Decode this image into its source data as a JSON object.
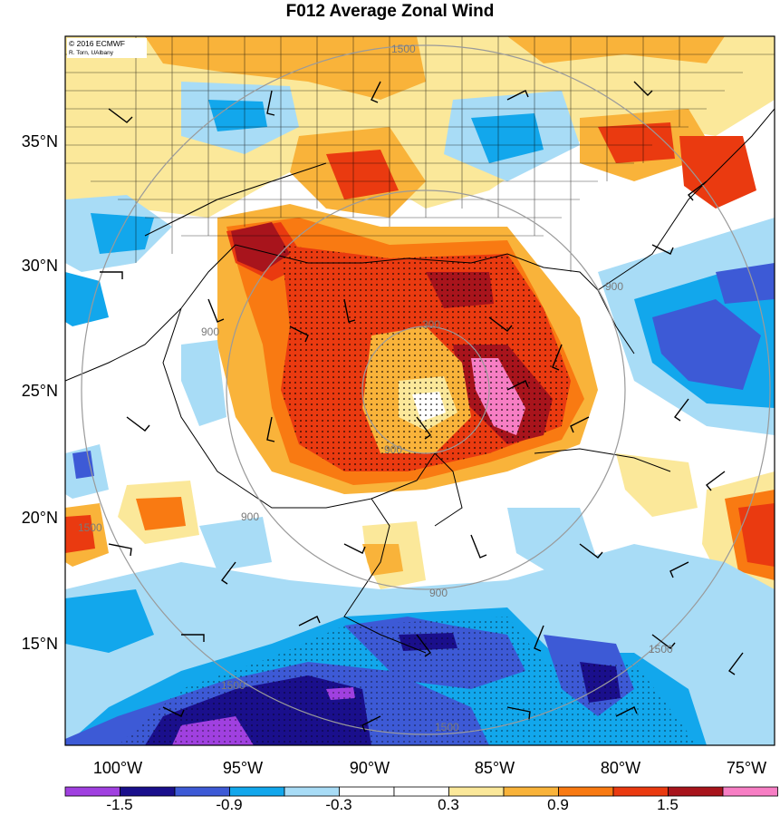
{
  "title": "F012 Average Zonal Wind",
  "credit": {
    "line1": "© 2016 ECMWF",
    "line2": "R. Torn, UAlbany"
  },
  "map": {
    "lat_labels": [
      "35°N",
      "30°N",
      "25°N",
      "20°N",
      "15°N"
    ],
    "lon_labels": [
      "100°W",
      "95°W",
      "90°W",
      "85°W",
      "80°W",
      "75°W"
    ]
  },
  "contour_labels": [
    "300",
    "900",
    "900",
    "900",
    "900",
    "900",
    "1500",
    "1500",
    "1500",
    "1500",
    "1500"
  ],
  "colorbar": {
    "colors": [
      "#a040e0",
      "#1a0f8c",
      "#3d5ad6",
      "#12a7ec",
      "#a8dcf6",
      "#ffffff",
      "#ffffff",
      "#fbe89a",
      "#f9b33a",
      "#f97a12",
      "#ea3a10",
      "#a8141c",
      "#f77ec4"
    ],
    "labels": [
      "-1.5",
      "-0.9",
      "-0.3",
      "0.3",
      "0.9",
      "1.5"
    ]
  }
}
